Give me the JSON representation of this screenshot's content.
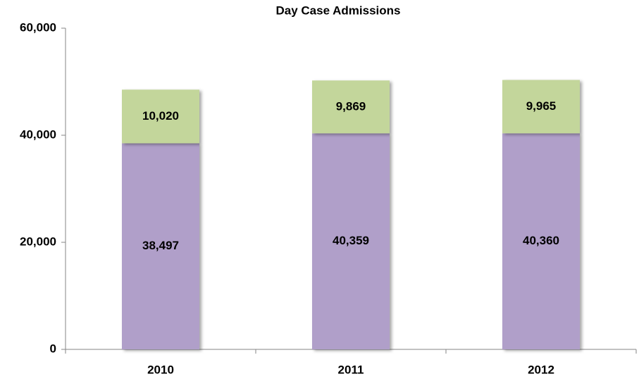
{
  "chart_data": {
    "type": "stacked_bar",
    "title": "Day Case Admissions",
    "categories": [
      "2010",
      "2011",
      "2012"
    ],
    "series": [
      {
        "color": "#b09fc9",
        "values": [
          38497,
          40359,
          40360
        ],
        "value_labels": [
          "38,497",
          "40,359",
          "40,360"
        ]
      },
      {
        "color": "#c3d69b",
        "values": [
          10020,
          9869,
          9965
        ],
        "value_labels": [
          "10,020",
          "9,869",
          "9,965"
        ]
      }
    ],
    "ylim": [
      0,
      60000
    ],
    "yticks": [
      0,
      {
        "value": 20000,
        "label": "20,000"
      },
      {
        "value": 40000,
        "label": "40,000"
      },
      {
        "value": 60000,
        "label": "60,000"
      }
    ],
    "grid": false
  }
}
